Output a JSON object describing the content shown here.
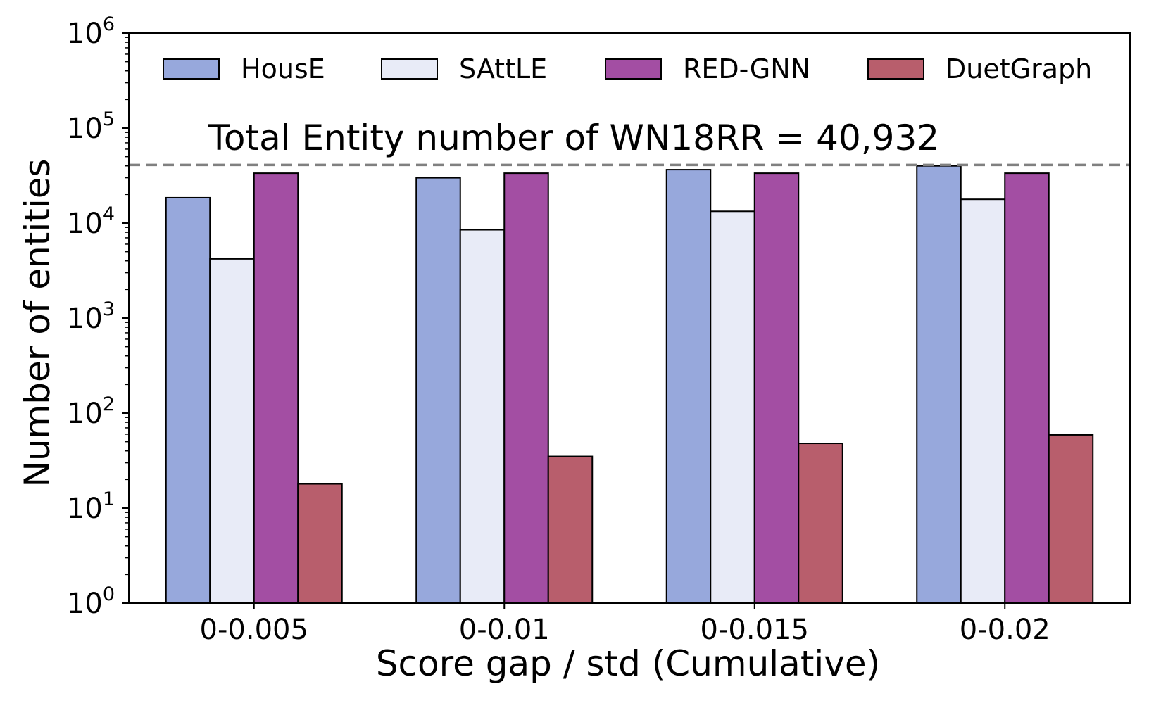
{
  "chart_data": {
    "type": "bar",
    "xlabel": "Score gap / std (Cumulative)",
    "ylabel": "Number of entities",
    "yscale": "log",
    "ylim": [
      1,
      1000000
    ],
    "y_ticks": [
      {
        "base": "10",
        "exp": "0",
        "value": 1
      },
      {
        "base": "10",
        "exp": "1",
        "value": 10
      },
      {
        "base": "10",
        "exp": "2",
        "value": 100
      },
      {
        "base": "10",
        "exp": "3",
        "value": 1000
      },
      {
        "base": "10",
        "exp": "4",
        "value": 10000
      },
      {
        "base": "10",
        "exp": "5",
        "value": 100000
      },
      {
        "base": "10",
        "exp": "6",
        "value": 1000000
      }
    ],
    "categories": [
      "0-0.005",
      "0-0.01",
      "0-0.015",
      "0-0.02"
    ],
    "series": [
      {
        "name": "HousE",
        "color": "#97a8dc",
        "values": [
          18500,
          30000,
          36500,
          40000
        ]
      },
      {
        "name": "SAttLE",
        "color": "#e8ebf7",
        "values": [
          4200,
          8500,
          13300,
          17800
        ]
      },
      {
        "name": "RED-GNN",
        "color": "#a34ea3",
        "values": [
          33500,
          33500,
          33500,
          33500
        ]
      },
      {
        "name": "DuetGraph",
        "color": "#b85e6c",
        "values": [
          18,
          35,
          48,
          59
        ]
      }
    ],
    "reference_line": {
      "value": 40932,
      "label": "Total Entity number of WN18RR = 40,932",
      "style": "dashed",
      "color": "#808080"
    },
    "legend_position": "top",
    "grid": false
  }
}
